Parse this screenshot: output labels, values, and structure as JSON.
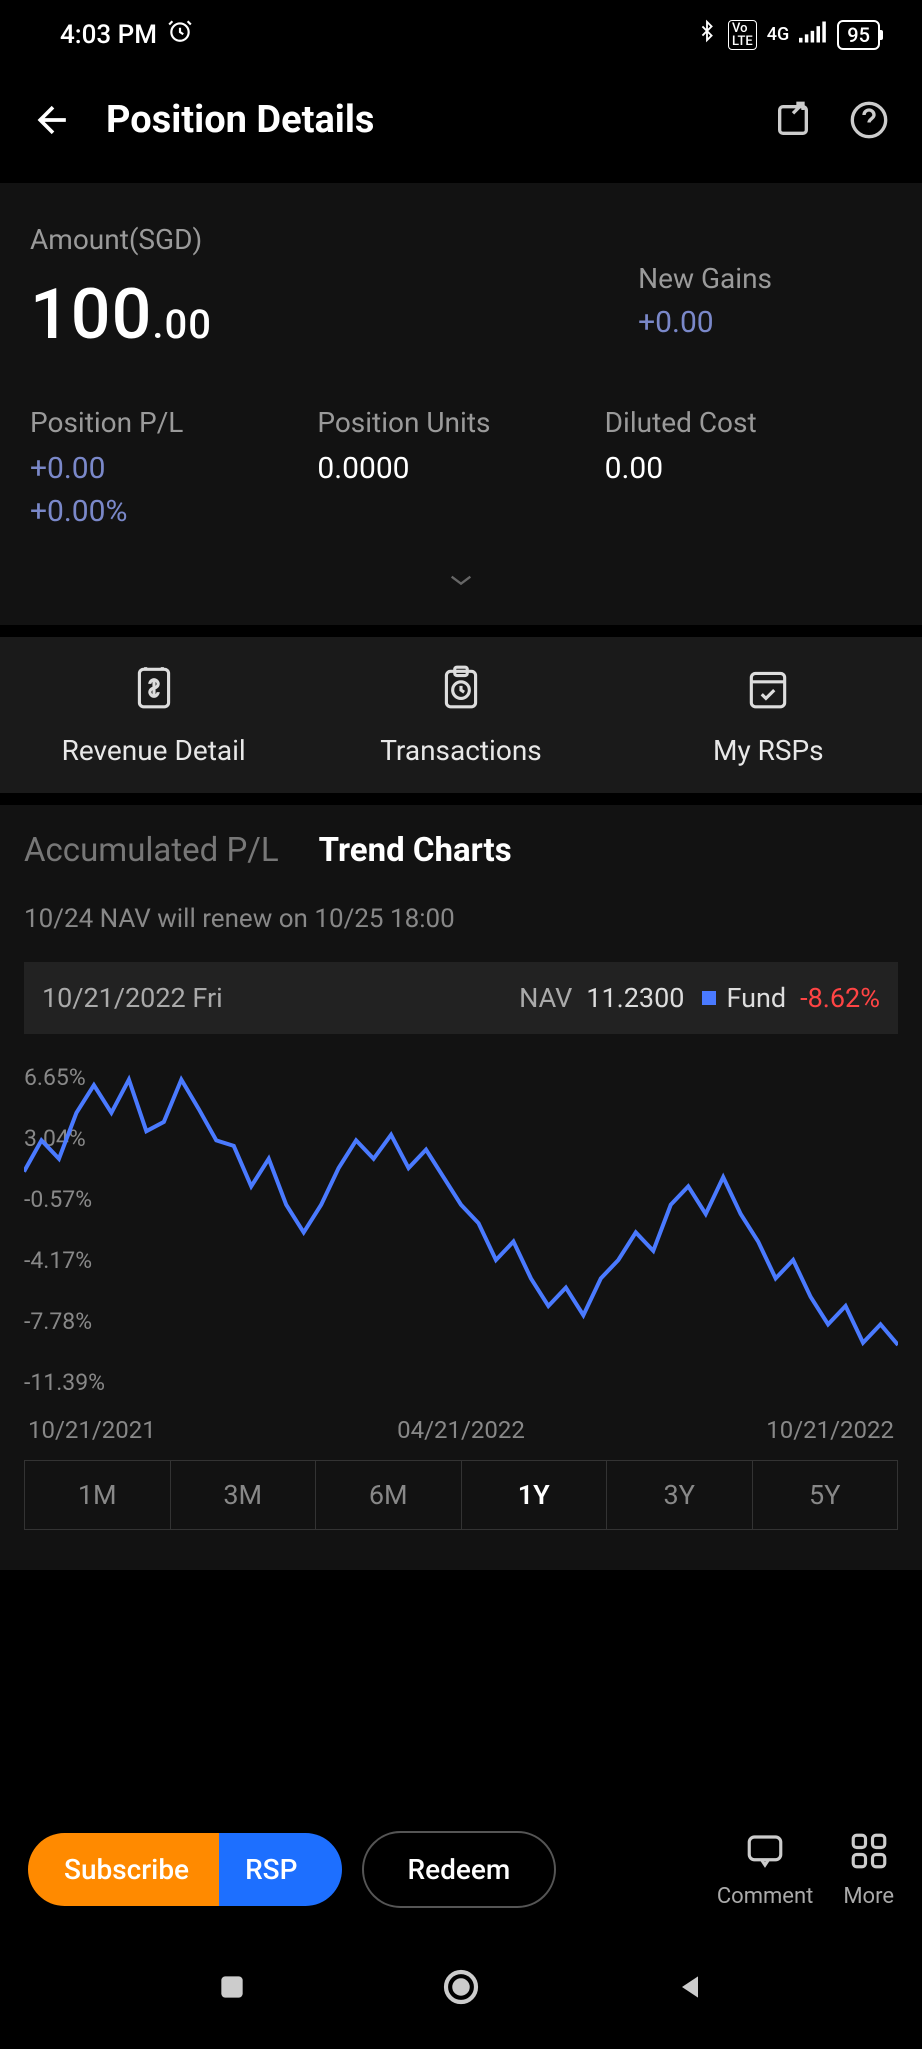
{
  "status_bar": {
    "time": "4:03 PM",
    "alarm_icon": true,
    "volte_icon": true,
    "network": "4G",
    "battery": "95"
  },
  "header": {
    "title": "Position Details"
  },
  "amount": {
    "label": "Amount(SGD)",
    "whole": "100",
    "decimal": ".00"
  },
  "new_gains": {
    "label": "New Gains",
    "value": "+0.00"
  },
  "stats": {
    "position_pl_label": "Position P/L",
    "position_pl_value": "+0.00",
    "position_pl_pct": "+0.00%",
    "position_units_label": "Position Units",
    "position_units_value": "0.0000",
    "diluted_cost_label": "Diluted Cost",
    "diluted_cost_value": "0.00"
  },
  "nav_tabs": {
    "revenue": "Revenue Detail",
    "transactions": "Transactions",
    "rsps": "My RSPs"
  },
  "section_tabs": {
    "accumulated_pl": "Accumulated P/L",
    "trend_charts": "Trend Charts"
  },
  "nav_notice": "10/24 NAV will renew on 10/25 18:00",
  "info_bar": {
    "date": "10/21/2022 Fri",
    "nav_label": "NAV",
    "nav_value": "11.2300",
    "fund_label": "Fund",
    "fund_value": "-8.62%",
    "fund_value_color": "#ff4444",
    "marker_color": "#4a7aff"
  },
  "chart": {
    "type": "line",
    "line_color": "#4a7aff",
    "line_width": 2,
    "background_color": "#121212",
    "ylim": [
      -11.39,
      6.65
    ],
    "y_ticks": [
      "6.65%",
      "3.04%",
      "-0.57%",
      "-4.17%",
      "-7.78%",
      "-11.39%"
    ],
    "x_ticks": [
      "10/21/2021",
      "04/21/2022",
      "10/21/2022"
    ],
    "label_color": "#888888",
    "label_fontsize": 23,
    "points": [
      [
        0,
        0.8
      ],
      [
        2,
        2.5
      ],
      [
        4,
        1.5
      ],
      [
        6,
        4.0
      ],
      [
        8,
        5.5
      ],
      [
        10,
        4.0
      ],
      [
        12,
        5.8
      ],
      [
        14,
        3.0
      ],
      [
        16,
        3.5
      ],
      [
        18,
        5.8
      ],
      [
        20,
        4.2
      ],
      [
        22,
        2.5
      ],
      [
        24,
        2.2
      ],
      [
        26,
        0.0
      ],
      [
        28,
        1.5
      ],
      [
        30,
        -1.0
      ],
      [
        32,
        -2.5
      ],
      [
        34,
        -1.0
      ],
      [
        36,
        1.0
      ],
      [
        38,
        2.5
      ],
      [
        40,
        1.5
      ],
      [
        42,
        2.8
      ],
      [
        44,
        1.0
      ],
      [
        46,
        2.0
      ],
      [
        48,
        0.5
      ],
      [
        50,
        -1.0
      ],
      [
        52,
        -2.0
      ],
      [
        54,
        -4.0
      ],
      [
        56,
        -3.0
      ],
      [
        58,
        -5.0
      ],
      [
        60,
        -6.5
      ],
      [
        62,
        -5.5
      ],
      [
        64,
        -7.0
      ],
      [
        66,
        -5.0
      ],
      [
        68,
        -4.0
      ],
      [
        70,
        -2.5
      ],
      [
        72,
        -3.5
      ],
      [
        74,
        -1.0
      ],
      [
        76,
        0.0
      ],
      [
        78,
        -1.5
      ],
      [
        80,
        0.5
      ],
      [
        82,
        -1.5
      ],
      [
        84,
        -3.0
      ],
      [
        86,
        -5.0
      ],
      [
        88,
        -4.0
      ],
      [
        90,
        -6.0
      ],
      [
        92,
        -7.5
      ],
      [
        94,
        -6.5
      ],
      [
        96,
        -8.5
      ],
      [
        98,
        -7.5
      ],
      [
        100,
        -8.62
      ]
    ]
  },
  "range_tabs": {
    "items": [
      "1M",
      "3M",
      "6M",
      "1Y",
      "3Y",
      "5Y"
    ],
    "active": "1Y"
  },
  "bottom_bar": {
    "subscribe": "Subscribe",
    "rsp": "RSP",
    "redeem": "Redeem",
    "comment": "Comment",
    "more": "More",
    "subscribe_bg": "#ff8a00",
    "rsp_bg": "#1d6fff"
  }
}
